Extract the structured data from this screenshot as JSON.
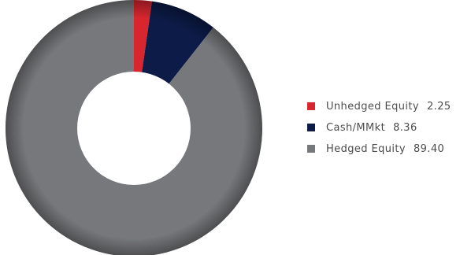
{
  "chart_data": {
    "type": "pie",
    "categories": [
      "Unhedged Equity",
      "Cash/MMkt",
      "Hedged Equity"
    ],
    "values": [
      2.25,
      8.36,
      89.4
    ],
    "value_labels": [
      "2.25",
      "8.36",
      "89.40"
    ],
    "colors": [
      "#d7262e",
      "#0c1b48",
      "#77787b"
    ],
    "title": "",
    "legend_position": "right"
  }
}
